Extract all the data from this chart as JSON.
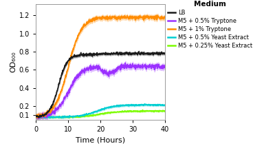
{
  "title": "",
  "xlabel": "Time (Hours)",
  "ylabel": "OD₆₀₀",
  "xlim": [
    0,
    40
  ],
  "ylim": [
    0.05,
    1.32
  ],
  "yticks": [
    0.1,
    0.2,
    0.4,
    0.6,
    0.8,
    1.0,
    1.2
  ],
  "xticks": [
    0,
    10,
    20,
    30,
    40
  ],
  "legend_title": "Medium",
  "legend_entries": [
    "LB",
    "M5 + 0.5% Tryptone",
    "M5 + 1% Tryptone",
    "M5 + 0.5% Yeast Extract",
    "M5 + 0.25% Yeast Extract"
  ],
  "colors": {
    "LB": "#1a1a1a",
    "M5_05_tryptone": "#9B30FF",
    "M5_1_tryptone": "#FF8C00",
    "M5_05_yeast": "#00CED1",
    "M5_025_yeast": "#7CFC00"
  },
  "lw": 1.2,
  "band_alpha": 0.28
}
